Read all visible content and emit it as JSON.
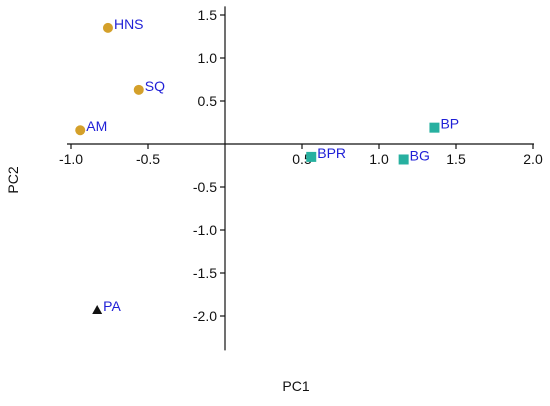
{
  "chart_data": {
    "type": "scatter",
    "title": "",
    "xlabel": "PC1",
    "ylabel": "PC2",
    "xlim": [
      -1.0,
      2.0
    ],
    "ylim": [
      -2.4,
      1.6
    ],
    "xticks": [
      -1.0,
      -0.5,
      0.5,
      1.0,
      1.5,
      2.0
    ],
    "xtick_labels": [
      "-1.0",
      "-0.5",
      "0.5",
      "1.0",
      "1.5",
      "2.0"
    ],
    "yticks": [
      1.5,
      1.0,
      0.5,
      -0.5,
      -1.0,
      -1.5,
      -2.0
    ],
    "ytick_labels": [
      "1.5",
      "1.0",
      "0.5",
      "-0.5",
      "-1.0",
      "-1.5",
      "-2.0"
    ],
    "grid": false,
    "label_color": "#1f1fd6",
    "series": [
      {
        "marker": "circle",
        "color": "#d4a02a",
        "points": [
          {
            "label": "HNS",
            "x": -0.76,
            "y": 1.35
          },
          {
            "label": "SQ",
            "x": -0.56,
            "y": 0.63
          },
          {
            "label": "AM",
            "x": -0.94,
            "y": 0.16
          }
        ]
      },
      {
        "marker": "square",
        "color": "#27b0a0",
        "points": [
          {
            "label": "BPR",
            "x": 0.56,
            "y": -0.15
          },
          {
            "label": "BP",
            "x": 1.36,
            "y": 0.19
          },
          {
            "label": "BG",
            "x": 1.16,
            "y": -0.18
          }
        ]
      },
      {
        "marker": "triangle",
        "color": "#111111",
        "points": [
          {
            "label": "PA",
            "x": -0.83,
            "y": -1.93
          }
        ]
      }
    ]
  }
}
